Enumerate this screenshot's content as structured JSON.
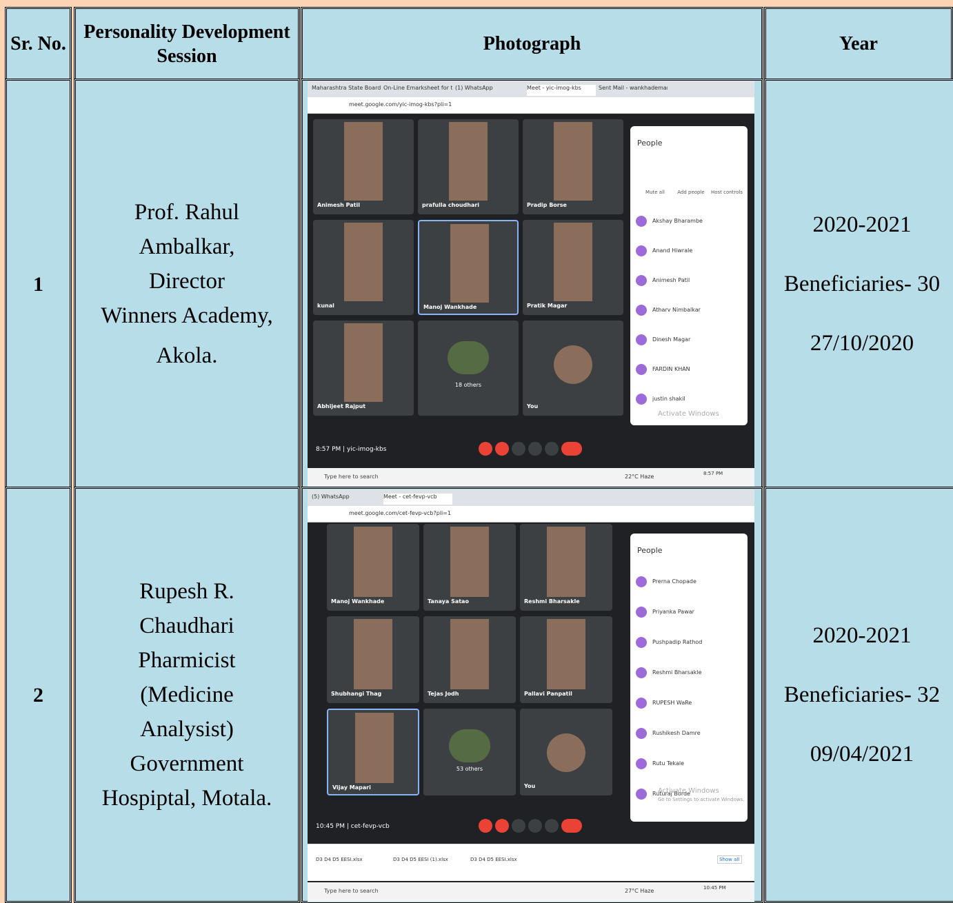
{
  "table": {
    "header": [
      "Sr. No.",
      "Personality Development Session",
      "Photograph",
      "Year"
    ],
    "rows": [
      {
        "sr": "1",
        "person": [
          "Prof. Rahul",
          "Ambalkar,",
          "Director",
          "Winners Academy,",
          "Akola."
        ],
        "year": [
          "2020-2021",
          "Beneficiaries- 30",
          "27/10/2020"
        ],
        "photo": {
          "tabs": [
            "Maharashtra State Board of",
            "On-Line Emarksheet for the",
            "(1) WhatsApp",
            "Meet - yic-imog-kbs",
            "Sent Mail - wankhademanoj"
          ],
          "url": "meet.google.com/yic-imog-kbs?pli=1",
          "tiles": [
            "Animesh Patil",
            "prafulla choudhari",
            "Pradip Borse",
            "kunal",
            "Manoj Wankhade",
            "Pratik Magar",
            "Abhijeet Rajput",
            "18 others",
            "You"
          ],
          "panel_title": "People",
          "actions": [
            "Mute all",
            "Add people",
            "Host controls"
          ],
          "people": [
            "Akshay Bharambe",
            "Anand Hiwrale",
            "Animesh Patil",
            "Atharv Nimbalkar",
            "Dinesh Magar",
            "FARDIN KHAN",
            "justin shakil"
          ],
          "time": "8:57 PM",
          "code": "yic-imog-kbs",
          "watermark": "Activate Windows",
          "search": "Type here to search",
          "weather": "22°C Haze",
          "clock": "8:57 PM"
        }
      },
      {
        "sr": "2",
        "person": [
          "Rupesh R.",
          "Chaudhari",
          "Pharmicist",
          "(Medicine",
          "Analysist)",
          "Government",
          "Hospiptal, Motala."
        ],
        "year": [
          "2020-2021",
          "Beneficiaries- 32",
          "09/04/2021"
        ],
        "photo": {
          "tabs": [
            "(5) WhatsApp",
            "Meet - cet-fevp-vcb"
          ],
          "url": "meet.google.com/cet-fevp-vcb?pli=1",
          "tiles": [
            "Manoj Wankhade",
            "Tanaya Satao",
            "Reshmi Bharsakle",
            "Shubhangi Thag",
            "Tejas Jodh",
            "Pallavi Panpatil",
            "Vijay Mapari",
            "53 others",
            "You"
          ],
          "panel_title": "People",
          "people": [
            "Prerna Chopade",
            "Priyanka Pawar",
            "Pushpadip Rathod",
            "Reshmi Bharsakle",
            "RUPESH WaRe",
            "Rushikesh Damre",
            "Rutu Tekale",
            "Ruturaj Borde"
          ],
          "time": "10:45 PM",
          "code": "cet-fevp-vcb",
          "watermark": "Activate Windows",
          "watermark_sub": "Go to Settings to activate Windows.",
          "downloads": [
            "D3 D4 D5 EESI.xlsx",
            "D3 D4 D5 EESI (1).xlsx",
            "D3 D4 D5 EESI.xlsx"
          ],
          "show_all": "Show all",
          "search": "Type here to search",
          "weather": "27°C Haze",
          "clock": "10:45 PM"
        }
      }
    ]
  }
}
